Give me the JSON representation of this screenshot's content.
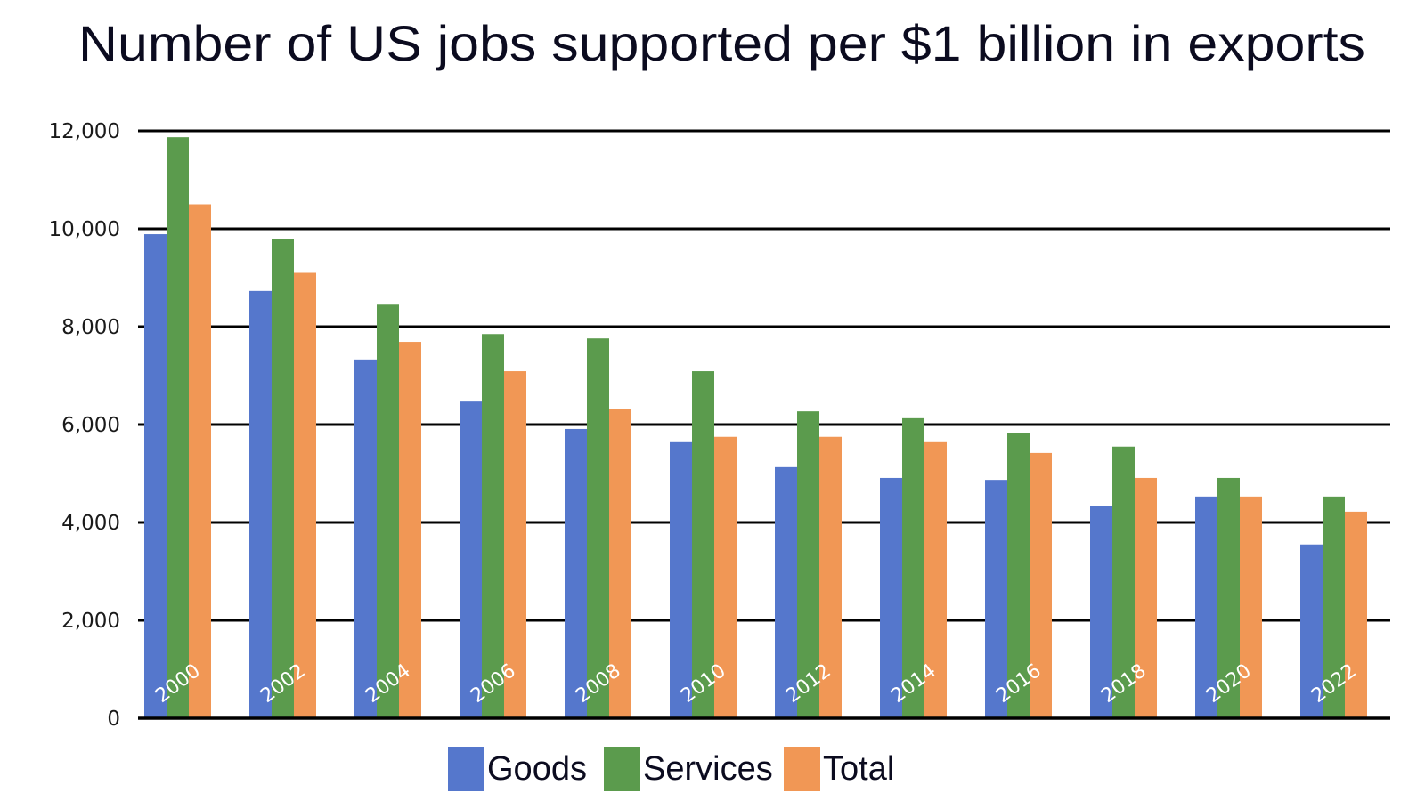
{
  "chart_data": {
    "type": "bar",
    "title": "Number of US jobs supported per $1 billion in exports",
    "xlabel": "",
    "ylabel": "",
    "categories": [
      "2000",
      "2002",
      "2004",
      "2006",
      "2008",
      "2010",
      "2012",
      "2014",
      "2016",
      "2018",
      "2020",
      "2022"
    ],
    "series": [
      {
        "name": "Goods",
        "color": "#5577CC",
        "values": [
          9890,
          8730,
          7330,
          6470,
          5910,
          5640,
          5130,
          4910,
          4870,
          4330,
          4530,
          3550
        ]
      },
      {
        "name": "Services",
        "color": "#5B9B4D",
        "values": [
          11870,
          9800,
          8450,
          7850,
          7760,
          7090,
          6270,
          6130,
          5820,
          5550,
          4910,
          4530
        ]
      },
      {
        "name": "Total",
        "color": "#F19755",
        "values": [
          10500,
          9100,
          7690,
          7090,
          6310,
          5750,
          5750,
          5640,
          5420,
          4910,
          4530,
          4220
        ]
      }
    ],
    "ylim": [
      0,
      12000
    ],
    "yticks": [
      0,
      2000,
      4000,
      6000,
      8000,
      10000,
      12000
    ],
    "ytick_labels": [
      "0",
      "2,000",
      "4,000",
      "6,000",
      "8,000",
      "10,000",
      "12,000"
    ],
    "grid": true,
    "legend": "bottom"
  }
}
